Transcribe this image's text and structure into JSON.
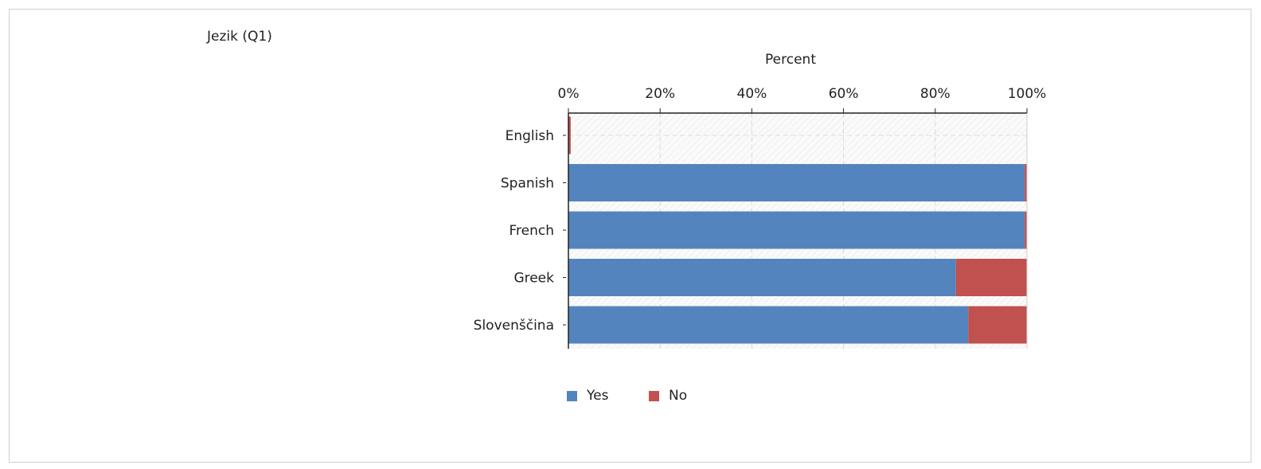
{
  "question_label": "Jezik (Q1)",
  "colors": {
    "yes": "#5484bd",
    "no": "#c1514e"
  },
  "chart_data": {
    "type": "bar",
    "orientation": "horizontal",
    "stacked": true,
    "xlabel": "Percent",
    "xlim": [
      0,
      100
    ],
    "xticks": [
      "0%",
      "20%",
      "40%",
      "60%",
      "80%",
      "100%"
    ],
    "categories": [
      "English",
      "Spanish",
      "French",
      "Greek",
      "Slovenščina"
    ],
    "series": [
      {
        "name": "Yes",
        "values": [
          0,
          99.5,
          99.5,
          84.5,
          87.2
        ]
      },
      {
        "name": "No",
        "values": [
          0.5,
          0.5,
          0.5,
          15.5,
          12.8
        ]
      }
    ],
    "legend_position": "bottom",
    "grid": true
  }
}
